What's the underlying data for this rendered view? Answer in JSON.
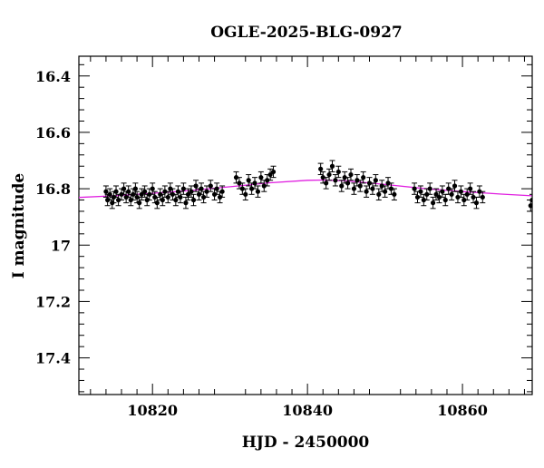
{
  "chart_data": {
    "type": "scatter",
    "title": "OGLE-2025-BLG-0927",
    "xlabel": "HJD - 2450000",
    "ylabel": "I magnitude",
    "xlim": [
      10810.5,
      10869
    ],
    "ylim": [
      17.53,
      16.33
    ],
    "y_inverted": true,
    "grid": false,
    "x_ticks": [
      10820,
      10840,
      10860
    ],
    "x_tick_labels": [
      "10820",
      "10840",
      "10860"
    ],
    "y_ticks": [
      16.4,
      16.6,
      16.8,
      17,
      17.2,
      17.4
    ],
    "y_tick_labels": [
      "16.4",
      "16.6",
      "16.8",
      "17",
      "17.2",
      "17.4"
    ],
    "colors": {
      "points": "#000000",
      "model": "#e020e0",
      "axes": "#000000"
    },
    "series": [
      {
        "type": "scatter",
        "x": [
          10814.0,
          10814.2,
          10814.5,
          10814.8,
          10815.0,
          10815.3,
          10815.6,
          10816.0,
          10816.3,
          10816.6,
          10816.9,
          10817.2,
          10817.5,
          10817.8,
          10818.0,
          10818.3,
          10818.6,
          10819.0,
          10819.3,
          10819.6,
          10820.0,
          10820.3,
          10820.6,
          10821.0,
          10821.3,
          10821.6,
          10822.0,
          10822.3,
          10822.6,
          10823.0,
          10823.3,
          10823.6,
          10824.0,
          10824.3,
          10824.6,
          10825.0,
          10825.3,
          10825.6,
          10826.0,
          10826.3,
          10826.6,
          10827.0,
          10827.5,
          10828.0,
          10828.3,
          10828.7,
          10829.0,
          10830.8,
          10831.2,
          10831.6,
          10832.0,
          10832.4,
          10832.8,
          10833.2,
          10833.6,
          10834.0,
          10834.4,
          10834.8,
          10835.2,
          10835.6,
          10841.7,
          10842.0,
          10842.4,
          10842.8,
          10843.2,
          10843.6,
          10844.0,
          10844.4,
          10844.8,
          10845.2,
          10845.6,
          10846.0,
          10846.4,
          10846.8,
          10847.2,
          10847.6,
          10848.0,
          10848.4,
          10848.8,
          10849.2,
          10849.6,
          10850.0,
          10850.4,
          10850.8,
          10851.2,
          10853.8,
          10854.2,
          10854.6,
          10855.0,
          10855.4,
          10855.8,
          10856.2,
          10856.6,
          10857.0,
          10857.4,
          10857.8,
          10858.2,
          10858.6,
          10859.0,
          10859.4,
          10859.8,
          10860.2,
          10860.6,
          10861.0,
          10861.4,
          10861.8,
          10862.2,
          10862.6,
          10868.8,
          10869.0
        ],
        "y": [
          16.81,
          16.84,
          16.82,
          16.85,
          16.83,
          16.81,
          16.84,
          16.82,
          16.8,
          16.83,
          16.81,
          16.84,
          16.82,
          16.8,
          16.83,
          16.85,
          16.82,
          16.81,
          16.84,
          16.82,
          16.8,
          16.83,
          16.85,
          16.82,
          16.84,
          16.81,
          16.83,
          16.8,
          16.82,
          16.84,
          16.81,
          16.83,
          16.8,
          16.85,
          16.82,
          16.81,
          16.84,
          16.79,
          16.82,
          16.8,
          16.83,
          16.81,
          16.79,
          16.82,
          16.8,
          16.83,
          16.81,
          16.76,
          16.78,
          16.8,
          16.82,
          16.77,
          16.8,
          16.78,
          16.81,
          16.76,
          16.79,
          16.77,
          16.75,
          16.74,
          16.73,
          16.76,
          16.78,
          16.75,
          16.72,
          16.77,
          16.74,
          16.79,
          16.76,
          16.78,
          16.75,
          16.8,
          16.77,
          16.79,
          16.76,
          16.81,
          16.78,
          16.8,
          16.77,
          16.82,
          16.79,
          16.81,
          16.78,
          16.8,
          16.82,
          16.8,
          16.83,
          16.81,
          16.84,
          16.82,
          16.8,
          16.85,
          16.82,
          16.83,
          16.81,
          16.84,
          16.8,
          16.82,
          16.79,
          16.83,
          16.81,
          16.84,
          16.82,
          16.8,
          16.83,
          16.85,
          16.81,
          16.83,
          16.86,
          16.84
        ],
        "error": 0.02
      },
      {
        "type": "line",
        "x": [
          10810.5,
          10815,
          10820,
          10825,
          10830,
          10835,
          10840,
          10842,
          10845,
          10850,
          10855,
          10860,
          10865,
          10869
        ],
        "y": [
          16.831,
          16.825,
          16.816,
          16.806,
          16.793,
          16.779,
          16.77,
          16.769,
          16.772,
          16.785,
          16.799,
          16.81,
          16.819,
          16.825
        ]
      }
    ]
  }
}
